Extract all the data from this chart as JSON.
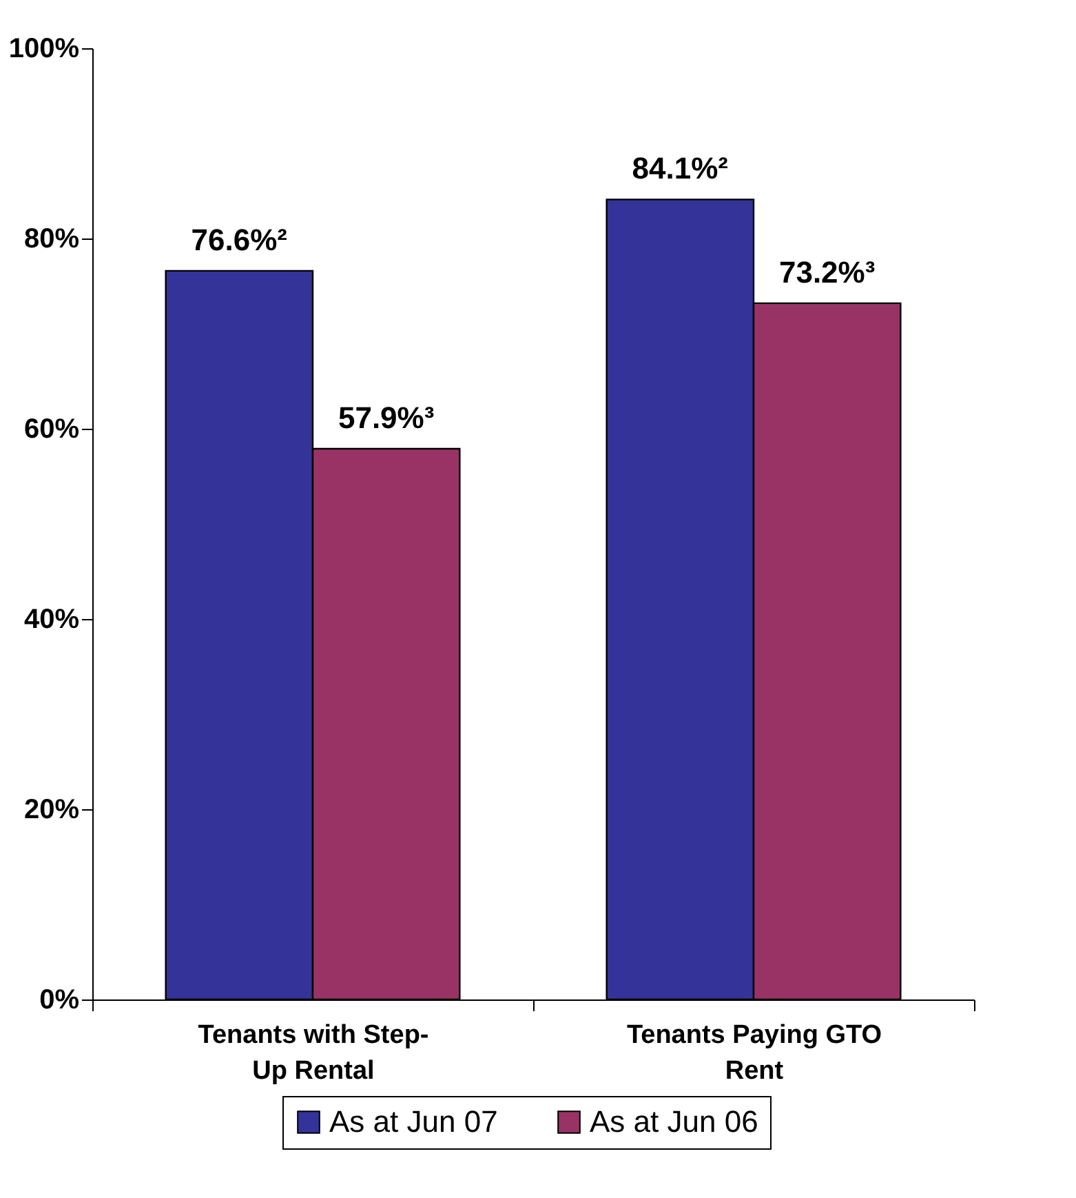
{
  "chart_data": {
    "type": "bar",
    "categories": [
      "Tenants with Step-Up Rental",
      "Tenants Paying GTO Rent"
    ],
    "series": [
      {
        "name": "As at Jun 07",
        "color": "#333399",
        "values": [
          76.6,
          84.1
        ],
        "value_labels": [
          "76.6%²",
          "84.1%²"
        ]
      },
      {
        "name": "As at Jun 06",
        "color": "#993366",
        "values": [
          57.9,
          73.2
        ],
        "value_labels": [
          "57.9%³",
          "73.2%³"
        ]
      }
    ],
    "ylim": [
      0,
      100
    ],
    "yticks": [
      {
        "value": 0,
        "label": "0%"
      },
      {
        "value": 20,
        "label": "20%"
      },
      {
        "value": 40,
        "label": "40%"
      },
      {
        "value": 60,
        "label": "60%"
      },
      {
        "value": 80,
        "label": "80%"
      },
      {
        "value": 100,
        "label": "100%"
      }
    ],
    "grid": false,
    "legend": "bottom right"
  }
}
